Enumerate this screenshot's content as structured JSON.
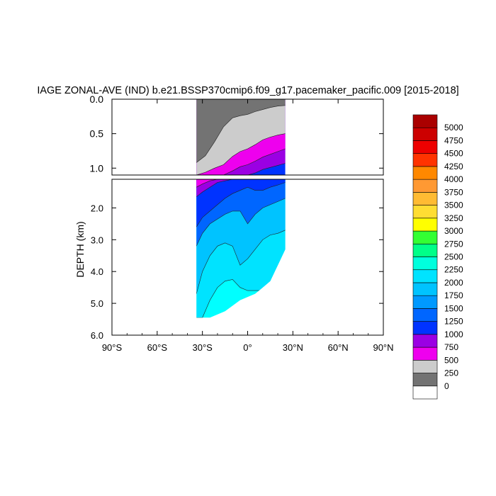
{
  "chart_data": {
    "type": "contour",
    "title": "IAGE ZONAL-AVE (IND) b.e21.BSSP370cmip6.f09_g17.pacemaker_pacific.009 [2015-2018]",
    "xlabel": "",
    "ylabel": "DEPTH (km)",
    "xlim": [
      -90,
      90
    ],
    "ylim_top": [
      0.0,
      1.1
    ],
    "ylim_bottom": [
      1.1,
      6.0
    ],
    "data_extent_lat": [
      -34,
      25
    ],
    "x_ticks": [
      {
        "value": -90,
        "label": "90°S"
      },
      {
        "value": -60,
        "label": "60°S"
      },
      {
        "value": -30,
        "label": "30°S"
      },
      {
        "value": 0,
        "label": "0°"
      },
      {
        "value": 30,
        "label": "30°N"
      },
      {
        "value": 60,
        "label": "60°N"
      },
      {
        "value": 90,
        "label": "90°N"
      }
    ],
    "y_ticks_top": [
      {
        "value": 0.0,
        "label": "0.0"
      },
      {
        "value": 0.5,
        "label": "0.5"
      },
      {
        "value": 1.0,
        "label": "1.0"
      }
    ],
    "y_ticks_bottom": [
      {
        "value": 2.0,
        "label": "2.0"
      },
      {
        "value": 3.0,
        "label": "3.0"
      },
      {
        "value": 4.0,
        "label": "4.0"
      },
      {
        "value": 5.0,
        "label": "5.0"
      },
      {
        "value": 6.0,
        "label": "6.0"
      }
    ],
    "levels": [
      0,
      250,
      500,
      750,
      1000,
      1250,
      1500,
      1750,
      2000,
      2250,
      2500,
      2750,
      3000,
      3250,
      3500,
      3750,
      4000,
      4250,
      4500,
      4750,
      5000
    ],
    "colorbar_colors": [
      "#ffffff",
      "#737373",
      "#cccccc",
      "#ee00ee",
      "#9b00e3",
      "#0033ff",
      "#0066ff",
      "#0099ff",
      "#00c3ff",
      "#00e3ff",
      "#00ffdd",
      "#00ff88",
      "#33ff33",
      "#ffff00",
      "#ffdd33",
      "#ffbb33",
      "#ff9933",
      "#ff8800",
      "#ff3300",
      "#ee0000",
      "#cc0000",
      "#aa0000"
    ],
    "top_bands": [
      {
        "lower": 0,
        "color": "#737373"
      },
      {
        "lower": 250,
        "color": "#cccccc"
      },
      {
        "lower": 500,
        "color": "#ee00ee"
      },
      {
        "lower": 750,
        "color": "#9b00e3"
      },
      {
        "lower": 1000,
        "color": "#0033ff"
      }
    ],
    "top_boundaries": [
      {
        "lat": [
          -34,
          -28,
          -22,
          -16,
          -10,
          -5,
          0,
          5,
          10,
          15,
          20,
          25
        ],
        "depth": [
          0.92,
          0.82,
          0.62,
          0.4,
          0.27,
          0.24,
          0.22,
          0.18,
          0.15,
          0.12,
          0.1,
          0.09
        ]
      },
      {
        "lat": [
          -34,
          -28,
          -22,
          -16,
          -10,
          -5,
          0,
          5,
          10,
          15,
          20,
          25
        ],
        "depth": [
          1.1,
          1.06,
          1.0,
          0.95,
          0.83,
          0.76,
          0.72,
          0.66,
          0.59,
          0.55,
          0.52,
          0.5
        ]
      },
      {
        "lat": [
          -34,
          -28,
          -22,
          -16,
          -10,
          -5,
          0,
          5,
          10,
          15,
          20,
          25
        ],
        "depth": [
          1.1,
          1.1,
          1.1,
          1.1,
          1.04,
          0.98,
          0.95,
          0.9,
          0.84,
          0.8,
          0.76,
          0.72
        ]
      },
      {
        "lat": [
          -34,
          -28,
          -22,
          -16,
          -10,
          -5,
          0,
          5,
          10,
          15,
          20,
          25
        ],
        "depth": [
          1.1,
          1.1,
          1.1,
          1.1,
          1.1,
          1.1,
          1.1,
          1.07,
          1.02,
          0.99,
          0.96,
          0.93
        ]
      }
    ],
    "bottom_bands": [
      {
        "lower": 500,
        "color": "#ee00ee"
      },
      {
        "lower": 750,
        "color": "#9b00e3"
      },
      {
        "lower": 1000,
        "color": "#0033ff"
      },
      {
        "lower": 1250,
        "color": "#0066ff"
      },
      {
        "lower": 1500,
        "color": "#00c3ff"
      },
      {
        "lower": 1750,
        "color": "#00e3ff"
      },
      {
        "lower": 2000,
        "color": "#00ffff"
      }
    ],
    "bottom_boundaries": [
      {
        "lat": [
          -34,
          -30,
          -25,
          -20,
          -15,
          -10,
          -5,
          0,
          5,
          10,
          15,
          20,
          25
        ],
        "depth": [
          1.35,
          1.25,
          1.15,
          1.1,
          1.1,
          1.1,
          1.1,
          1.1,
          1.1,
          1.1,
          1.1,
          1.1,
          1.1
        ]
      },
      {
        "lat": [
          -34,
          -30,
          -25,
          -20,
          -15,
          -10,
          -5,
          0,
          5,
          10,
          15,
          20,
          25
        ],
        "depth": [
          1.65,
          1.5,
          1.35,
          1.2,
          1.15,
          1.1,
          1.1,
          1.1,
          1.1,
          1.1,
          1.1,
          1.1,
          1.1
        ]
      },
      {
        "lat": [
          -34,
          -30,
          -25,
          -20,
          -15,
          -10,
          -5,
          0,
          5,
          10,
          15,
          20,
          25
        ],
        "depth": [
          2.6,
          2.3,
          2.1,
          1.9,
          1.7,
          1.55,
          1.45,
          1.35,
          1.45,
          1.45,
          1.35,
          1.28,
          1.2
        ]
      },
      {
        "lat": [
          -34,
          -30,
          -25,
          -20,
          -15,
          -10,
          -5,
          0,
          5,
          10,
          15,
          20,
          25
        ],
        "depth": [
          3.2,
          2.8,
          2.5,
          2.35,
          2.2,
          2.1,
          2.1,
          2.5,
          2.2,
          2.0,
          1.9,
          1.8,
          1.7
        ]
      },
      {
        "lat": [
          -34,
          -30,
          -25,
          -20,
          -15,
          -10,
          -5,
          0,
          5,
          10,
          15,
          20,
          25
        ],
        "depth": [
          4.7,
          4.0,
          3.5,
          3.2,
          3.1,
          3.2,
          3.8,
          3.6,
          3.3,
          3.0,
          2.85,
          2.8,
          2.7
        ]
      },
      {
        "lat": [
          -34,
          -30,
          -25,
          -20,
          -15,
          -10,
          -5,
          0,
          5,
          10,
          15,
          20,
          25
        ],
        "depth": [
          5.45,
          5.45,
          4.9,
          4.5,
          4.3,
          4.25,
          4.5,
          4.6,
          4.6,
          4.6,
          4.6,
          4.6,
          4.6
        ]
      }
    ],
    "bottom_extent": [
      {
        "lat": -34,
        "depth": 5.45
      },
      {
        "lat": -25,
        "depth": 5.45
      },
      {
        "lat": -15,
        "depth": 5.25
      },
      {
        "lat": -5,
        "depth": 4.9
      },
      {
        "lat": 0,
        "depth": 4.8
      },
      {
        "lat": 5,
        "depth": 4.7
      },
      {
        "lat": 10,
        "depth": 4.5
      },
      {
        "lat": 15,
        "depth": 4.3
      },
      {
        "lat": 20,
        "depth": 3.8
      },
      {
        "lat": 25,
        "depth": 3.3
      }
    ]
  }
}
